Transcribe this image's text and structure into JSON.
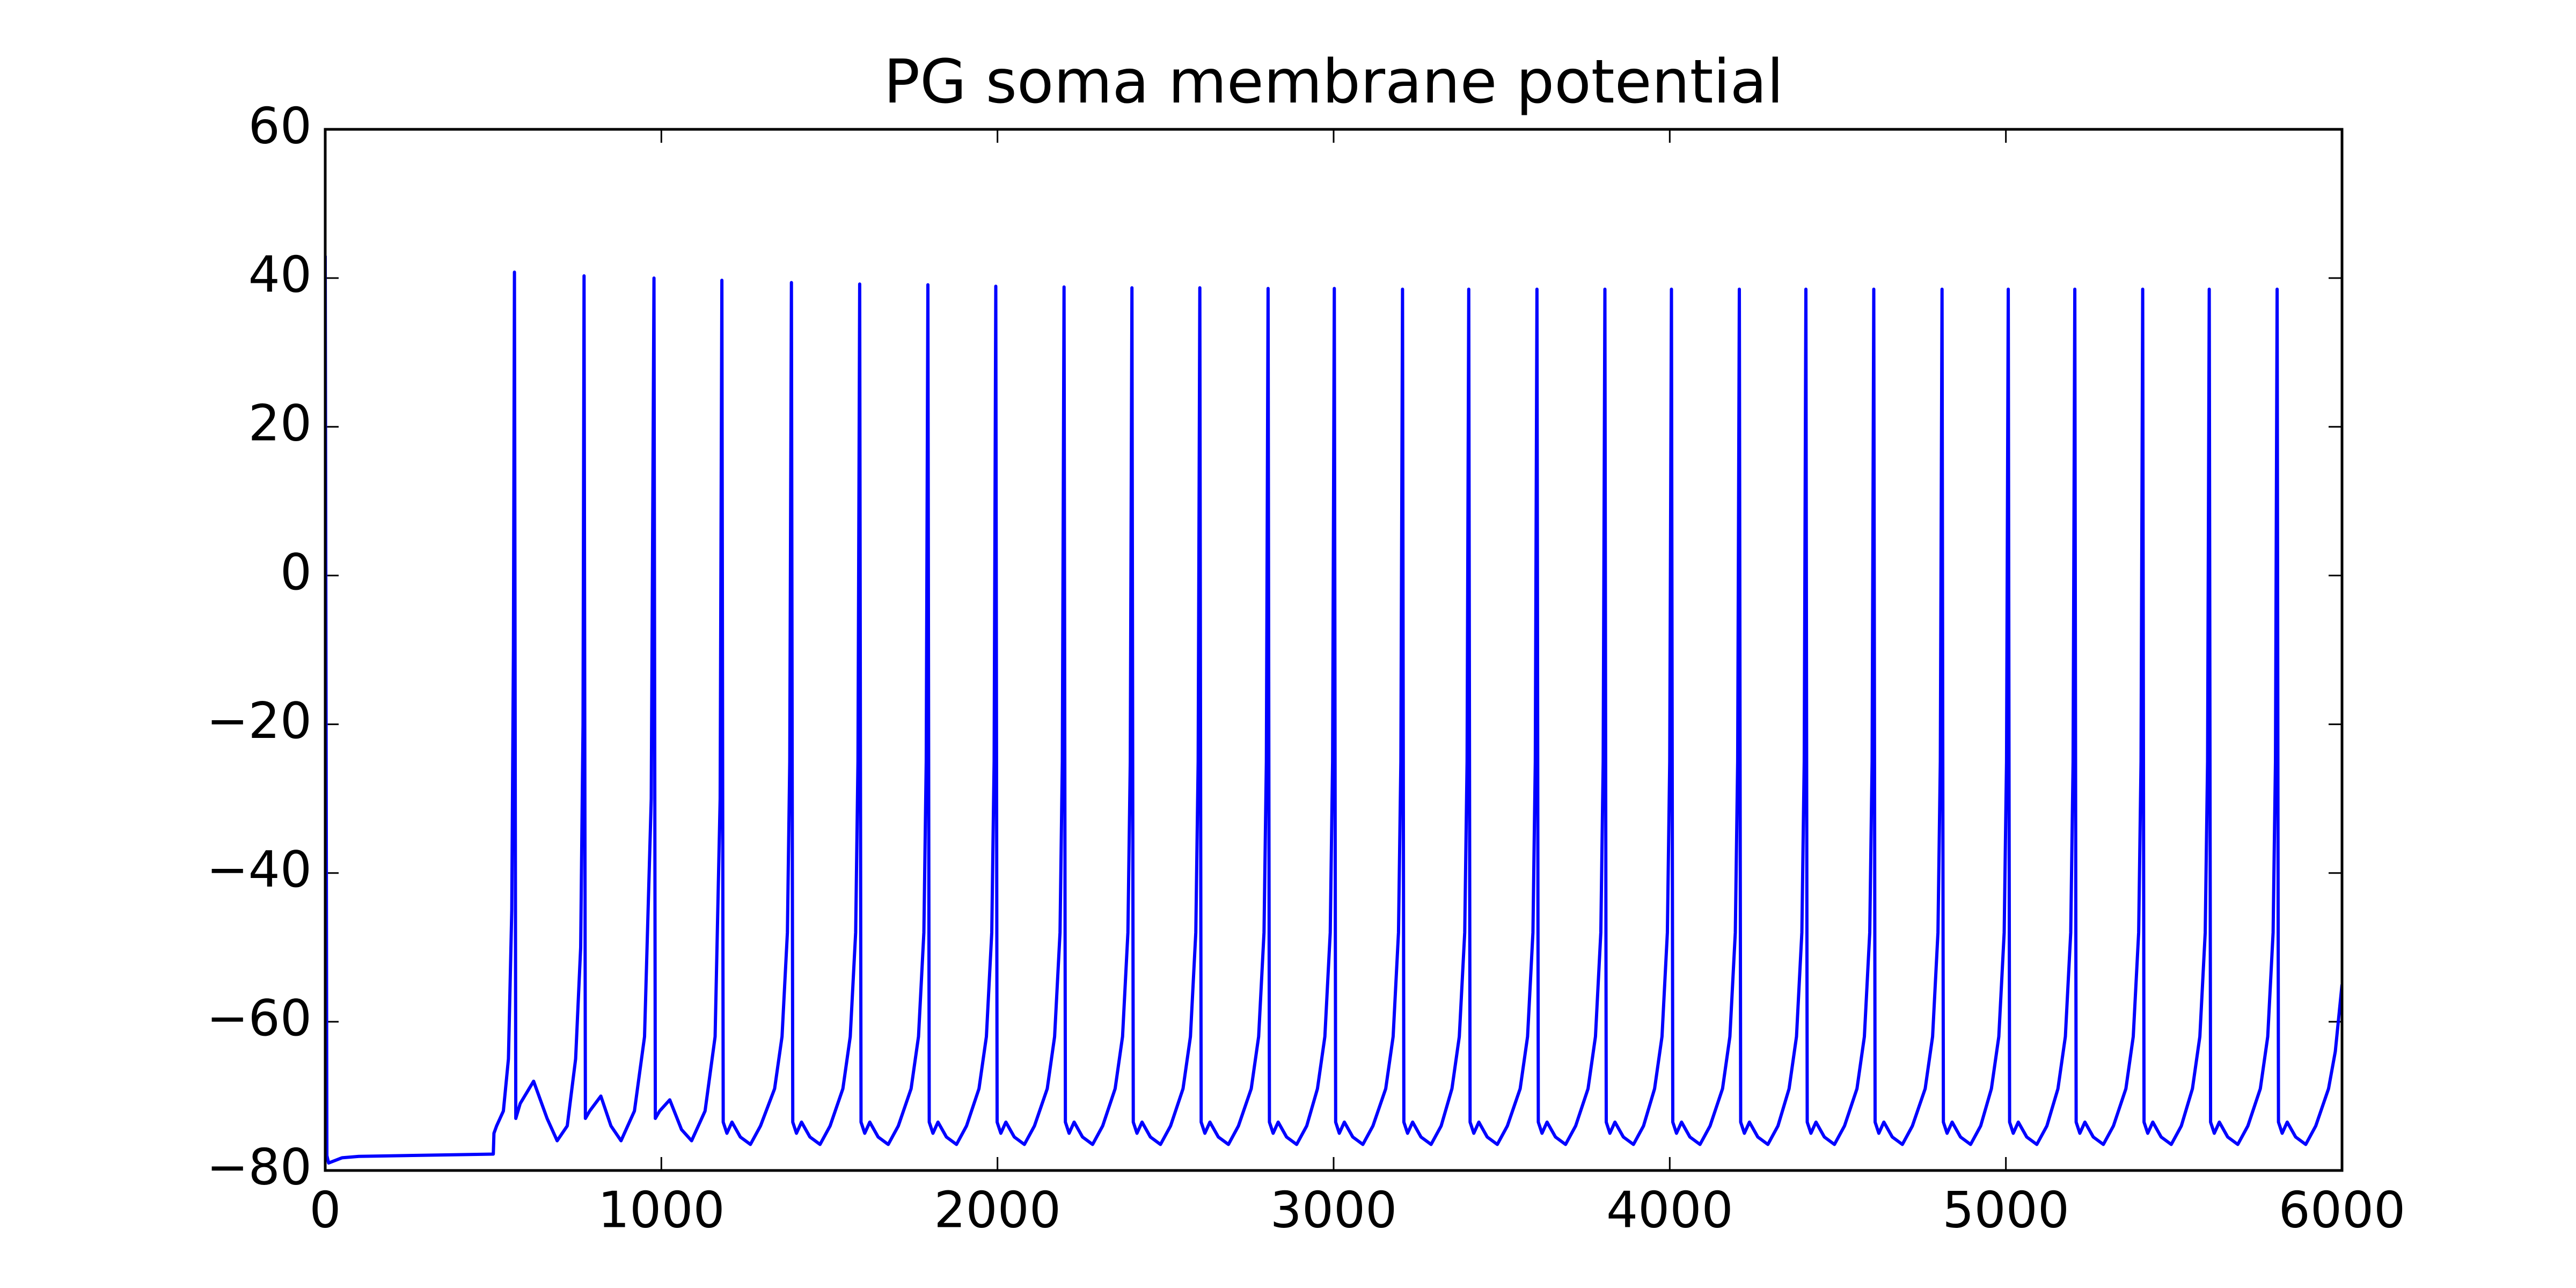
{
  "chart_data": {
    "type": "line",
    "title": "PG soma membrane potential",
    "color": "#0000ff",
    "x": [
      0,
      5,
      10,
      50,
      100,
      500,
      502,
      510,
      530,
      545,
      555,
      560,
      563,
      567,
      580,
      620,
      660,
      690,
      720,
      745,
      760,
      767,
      770,
      774,
      787,
      820,
      850,
      880,
      920,
      950,
      970,
      978,
      982,
      995,
      1025,
      1060,
      1090,
      1130,
      1160,
      1175,
      1180,
      1184,
      1195,
      1210,
      1235,
      1265,
      1295,
      1337,
      1359,
      1375,
      1382,
      1387,
      1391,
      1402,
      1417,
      1442,
      1472,
      1502,
      1540,
      1562,
      1578,
      1585,
      1590,
      1594,
      1605,
      1620,
      1645,
      1675,
      1705,
      1743,
      1765,
      1781,
      1788,
      1793,
      1797,
      1808,
      1823,
      1848,
      1878,
      1908,
      1945,
      1967,
      1983,
      1990,
      1995,
      1999,
      2010,
      2025,
      2050,
      2080,
      2110,
      2148,
      2170,
      2186,
      2193,
      2198,
      2202,
      2213,
      2228,
      2253,
      2283,
      2313,
      2350,
      2372,
      2388,
      2395,
      2400,
      2404,
      2415,
      2430,
      2455,
      2485,
      2515,
      2552,
      2574,
      2590,
      2597,
      2602,
      2606,
      2617,
      2632,
      2657,
      2687,
      2717,
      2755,
      2777,
      2793,
      2800,
      2805,
      2809,
      2820,
      2835,
      2860,
      2890,
      2920,
      2952,
      2974,
      2990,
      2997,
      3002,
      3006,
      3017,
      3032,
      3057,
      3087,
      3117,
      3155,
      3177,
      3193,
      3200,
      3205,
      3209,
      3220,
      3235,
      3260,
      3290,
      3320,
      3352,
      3374,
      3390,
      3397,
      3402,
      3406,
      3417,
      3432,
      3457,
      3487,
      3517,
      3555,
      3577,
      3593,
      3600,
      3605,
      3609,
      3620,
      3635,
      3660,
      3690,
      3720,
      3757,
      3779,
      3795,
      3802,
      3807,
      3811,
      3822,
      3837,
      3862,
      3892,
      3922,
      3955,
      3977,
      3993,
      4000,
      4005,
      4009,
      4020,
      4035,
      4060,
      4090,
      4120,
      4157,
      4179,
      4195,
      4202,
      4207,
      4211,
      4222,
      4237,
      4262,
      4292,
      4322,
      4355,
      4377,
      4393,
      4400,
      4405,
      4409,
      4420,
      4435,
      4460,
      4490,
      4520,
      4557,
      4579,
      4595,
      4602,
      4607,
      4611,
      4622,
      4637,
      4662,
      4692,
      4722,
      4760,
      4782,
      4798,
      4805,
      4810,
      4814,
      4825,
      4840,
      4865,
      4895,
      4925,
      4957,
      4979,
      4995,
      5002,
      5007,
      5011,
      5022,
      5037,
      5062,
      5092,
      5122,
      5155,
      5177,
      5193,
      5200,
      5205,
      5209,
      5220,
      5235,
      5260,
      5290,
      5320,
      5357,
      5379,
      5395,
      5402,
      5407,
      5411,
      5422,
      5437,
      5462,
      5492,
      5522,
      5555,
      5577,
      5593,
      5600,
      5605,
      5609,
      5620,
      5635,
      5660,
      5690,
      5720,
      5757,
      5779,
      5795,
      5802,
      5807,
      5811,
      5822,
      5837,
      5862,
      5892,
      5922,
      5960,
      5980,
      6000
    ],
    "values": [
      43,
      -78,
      -79,
      -78.3,
      -78.1,
      -77.8,
      -75,
      -74,
      -72,
      -65,
      -45,
      -10,
      40.8,
      -73,
      -71,
      -68,
      -73,
      -76,
      -74,
      -65,
      -50,
      -20,
      40.3,
      -73,
      -72,
      -70,
      -74,
      -76,
      -72,
      -62,
      -30,
      40,
      -73,
      -72,
      -70.5,
      -74.5,
      -76,
      -72,
      -62,
      -30,
      39.7,
      -73.5,
      -75,
      -73.5,
      -75.5,
      -76.5,
      -74,
      -69,
      -62,
      -48,
      -25,
      39.4,
      -73.5,
      -75,
      -73.5,
      -75.5,
      -76.5,
      -74,
      -69,
      -62,
      -48,
      -25,
      39.2,
      -73.5,
      -75,
      -73.5,
      -75.5,
      -76.5,
      -74,
      -69,
      -62,
      -48,
      -25,
      39.1,
      -73.5,
      -75,
      -73.5,
      -75.5,
      -76.5,
      -74,
      -69,
      -62,
      -48,
      -25,
      38.9,
      -73.5,
      -75,
      -73.5,
      -75.5,
      -76.5,
      -74,
      -69,
      -62,
      -48,
      -25,
      38.8,
      -73.5,
      -75,
      -73.5,
      -75.5,
      -76.5,
      -74,
      -69,
      -62,
      -48,
      -25,
      38.7,
      -73.5,
      -75,
      -73.5,
      -75.5,
      -76.5,
      -74,
      -69,
      -62,
      -48,
      -25,
      38.7,
      -73.5,
      -75,
      -73.5,
      -75.5,
      -76.5,
      -74,
      -69,
      -62,
      -48,
      -25,
      38.6,
      -73.5,
      -75,
      -73.5,
      -75.5,
      -76.5,
      -74,
      -69,
      -62,
      -48,
      -25,
      38.6,
      -73.5,
      -75,
      -73.5,
      -75.5,
      -76.5,
      -74,
      -69,
      -62,
      -48,
      -25,
      38.5,
      -73.5,
      -75,
      -73.5,
      -75.5,
      -76.5,
      -74,
      -69,
      -62,
      -48,
      -25,
      38.5,
      -73.5,
      -75,
      -73.5,
      -75.5,
      -76.5,
      -74,
      -69,
      -62,
      -48,
      -25,
      38.5,
      -73.5,
      -75,
      -73.5,
      -75.5,
      -76.5,
      -74,
      -69,
      -62,
      -48,
      -25,
      38.5,
      -73.5,
      -75,
      -73.5,
      -75.5,
      -76.5,
      -74,
      -69,
      -62,
      -48,
      -25,
      38.5,
      -73.5,
      -75,
      -73.5,
      -75.5,
      -76.5,
      -74,
      -69,
      -62,
      -48,
      -25,
      38.5,
      -73.5,
      -75,
      -73.5,
      -75.5,
      -76.5,
      -74,
      -69,
      -62,
      -48,
      -25,
      38.5,
      -73.5,
      -75,
      -73.5,
      -75.5,
      -76.5,
      -74,
      -69,
      -62,
      -48,
      -25,
      38.5,
      -73.5,
      -75,
      -73.5,
      -75.5,
      -76.5,
      -74,
      -69,
      -62,
      -48,
      -25,
      38.5,
      -73.5,
      -75,
      -73.5,
      -75.5,
      -76.5,
      -74,
      -69,
      -62,
      -48,
      -25,
      38.5,
      -73.5,
      -75,
      -73.5,
      -75.5,
      -76.5,
      -74,
      -69,
      -62,
      -48,
      -25,
      38.5,
      -73.5,
      -75,
      -73.5,
      -75.5,
      -76.5,
      -74,
      -69,
      -62,
      -48,
      -25,
      38.5,
      -73.5,
      -75,
      -73.5,
      -75.5,
      -76.5,
      -74,
      -69,
      -62,
      -48,
      -25,
      38.5,
      -73.5,
      -75,
      -73.5,
      -75.5,
      -76.5,
      -74,
      -69,
      -62,
      -48,
      -25,
      38.5,
      -73.5,
      -75,
      -73.5,
      -75.5,
      -76.5,
      -74,
      -69,
      -64,
      -55
    ],
    "xlim": [
      0,
      6000
    ],
    "xticks": [
      0,
      1000,
      2000,
      3000,
      4000,
      5000,
      6000
    ],
    "ylim": [
      -80,
      60
    ],
    "yticks": [
      {
        "value": -80,
        "label": "−80"
      },
      {
        "value": -60,
        "label": "−60"
      },
      {
        "value": -40,
        "label": "−40"
      },
      {
        "value": -20,
        "label": "−20"
      },
      0,
      20,
      40,
      60
    ],
    "grid": false
  }
}
